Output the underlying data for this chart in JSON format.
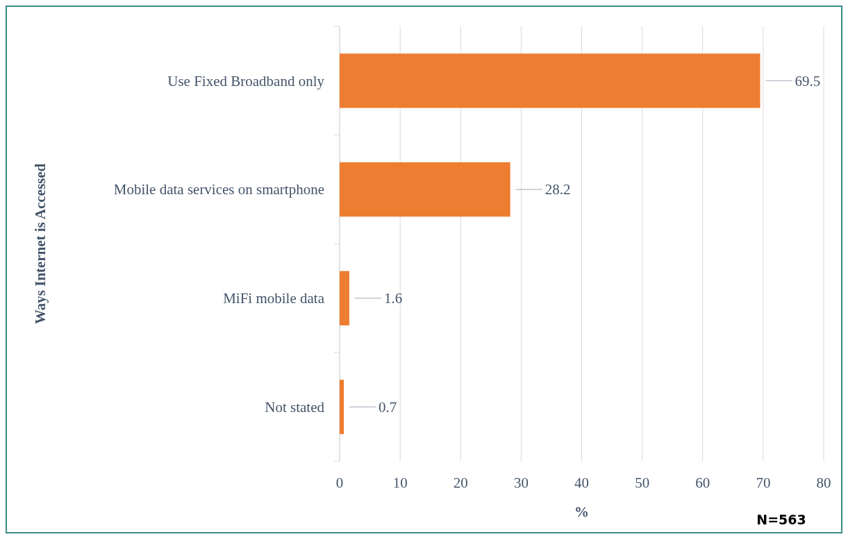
{
  "chart_data": {
    "type": "bar",
    "orientation": "horizontal",
    "xlabel": "%",
    "ylabel": "Ways Internet is Accessed",
    "categories": [
      "Use Fixed Broadband only",
      "Mobile data services on smartphone",
      "MiFi mobile data",
      "Not stated"
    ],
    "values": [
      69.5,
      28.2,
      1.6,
      0.7
    ],
    "color": "#ed7d31",
    "xlim": [
      0,
      80
    ],
    "xticks": [
      0,
      10,
      20,
      30,
      40,
      50,
      60,
      70,
      80
    ],
    "grid": "x",
    "data_labels": true,
    "annotations": [
      "N=563"
    ]
  }
}
